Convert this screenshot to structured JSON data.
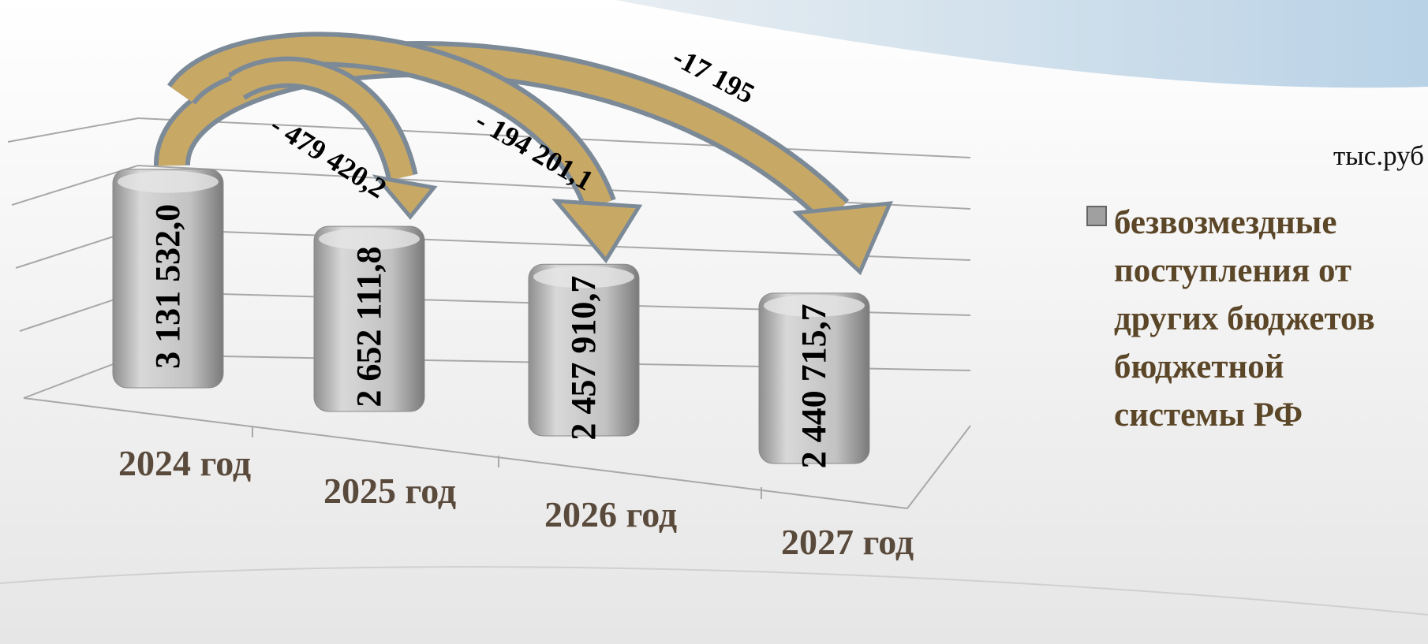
{
  "chart_data": {
    "type": "bar",
    "unit_label": "тыс.руб",
    "categories": [
      "2024 год",
      "2025 год",
      "2026 год",
      "2027 год"
    ],
    "series": [
      {
        "name": "безвозмездные поступления от других бюджетов бюджетной системы РФ",
        "color": "#b4b4b4",
        "values": [
          3131532.0,
          2652111.8,
          2457910.7,
          2440715.7
        ],
        "value_labels": [
          "3 131 532,0",
          "2 652 111,8",
          "2 457 910,7",
          "2 440 715,7"
        ]
      }
    ],
    "annotations": [
      "- 479 420,2",
      "- 194 201,1",
      "-17 195"
    ],
    "ylim": [
      0,
      3500000
    ]
  }
}
